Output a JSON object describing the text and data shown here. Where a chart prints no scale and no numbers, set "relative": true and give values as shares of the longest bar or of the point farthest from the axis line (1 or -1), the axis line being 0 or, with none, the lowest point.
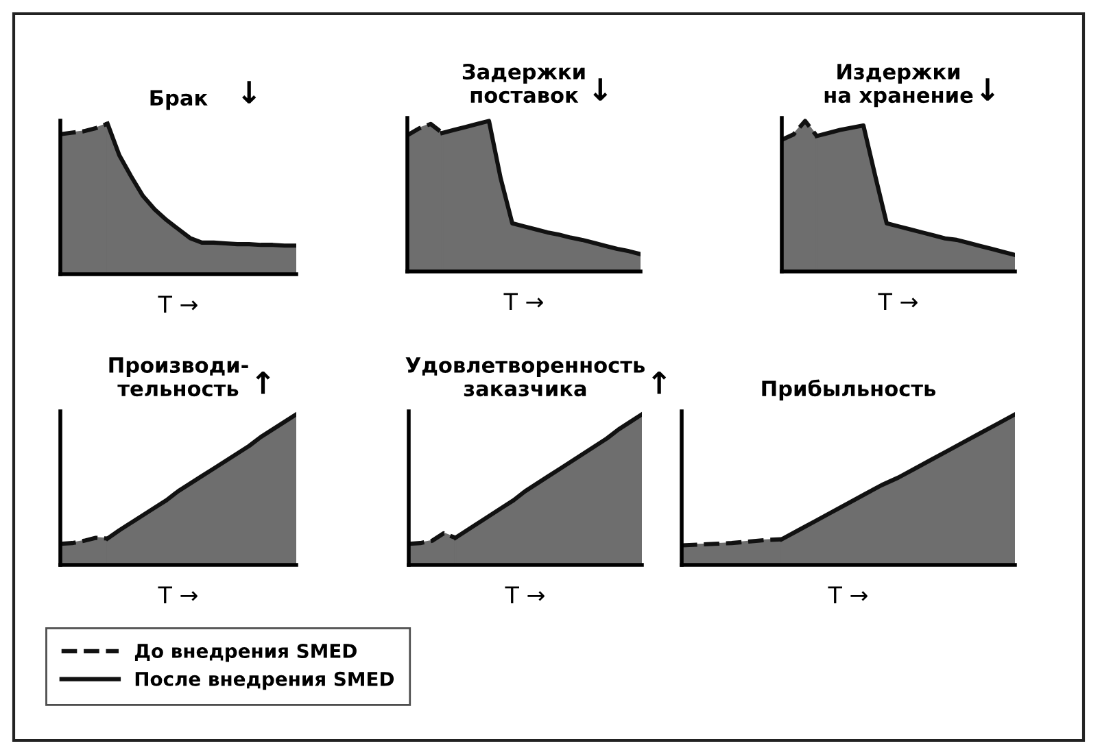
{
  "chart_data": [
    {
      "type": "area",
      "relative": true,
      "title": "Брак",
      "xlabel": "T →",
      "annotations": [
        "↓"
      ],
      "categories": [
        null,
        null,
        null,
        null,
        null,
        null,
        null,
        null,
        null,
        null,
        null,
        null,
        null,
        null,
        null,
        null,
        null,
        null,
        null,
        null,
        null
      ],
      "series": [
        {
          "color": "#111111",
          "line_style": "dashed",
          "values": [
            0.93,
            0.94,
            0.95,
            0.97,
            1.0,
            null,
            null,
            null,
            null,
            null,
            null,
            null,
            null,
            null,
            null,
            null,
            null,
            null,
            null,
            null,
            null
          ]
        },
        {
          "color": "#111111",
          "line_style": "solid",
          "values": [
            null,
            null,
            null,
            null,
            1.0,
            0.79,
            0.65,
            0.52,
            0.43,
            0.36,
            0.3,
            0.24,
            0.21,
            0.21,
            0.205,
            0.2,
            0.2,
            0.195,
            0.195,
            0.19,
            0.19
          ]
        }
      ]
    },
    {
      "type": "area",
      "relative": true,
      "title": "Задержки\nпоставок",
      "xlabel": "T →",
      "annotations": [
        "↓"
      ],
      "categories": [
        null,
        null,
        null,
        null,
        null,
        null,
        null,
        null,
        null,
        null,
        null,
        null,
        null,
        null,
        null,
        null,
        null,
        null,
        null,
        null,
        null
      ],
      "series": [
        {
          "color": "#111111",
          "line_style": "dashed",
          "values": [
            0.905,
            0.95,
            0.98,
            0.92,
            null,
            null,
            null,
            null,
            null,
            null,
            null,
            null,
            null,
            null,
            null,
            null,
            null,
            null,
            null,
            null,
            null
          ]
        },
        {
          "color": "#111111",
          "line_style": "solid",
          "values": [
            null,
            null,
            null,
            0.92,
            0.94,
            0.96,
            0.98,
            1.0,
            0.62,
            0.32,
            0.3,
            0.28,
            0.26,
            0.245,
            0.225,
            0.21,
            0.19,
            0.17,
            0.15,
            0.135,
            0.115
          ]
        }
      ]
    },
    {
      "type": "area",
      "relative": true,
      "title": "Издержки\nна хранение",
      "xlabel": "T →",
      "annotations": [
        "↓"
      ],
      "categories": [
        null,
        null,
        null,
        null,
        null,
        null,
        null,
        null,
        null,
        null,
        null,
        null,
        null,
        null,
        null,
        null,
        null,
        null,
        null,
        null,
        null
      ],
      "series": [
        {
          "color": "#111111",
          "line_style": "dashed",
          "values": [
            0.875,
            0.91,
            1.0,
            0.9,
            null,
            null,
            null,
            null,
            null,
            null,
            null,
            null,
            null,
            null,
            null,
            null,
            null,
            null,
            null,
            null,
            null
          ]
        },
        {
          "color": "#111111",
          "line_style": "solid",
          "values": [
            null,
            null,
            null,
            0.9,
            0.92,
            0.94,
            0.955,
            0.97,
            0.64,
            0.32,
            0.3,
            0.28,
            0.26,
            0.24,
            0.22,
            0.21,
            0.19,
            0.17,
            0.15,
            0.13,
            0.11
          ]
        }
      ]
    },
    {
      "type": "area",
      "relative": true,
      "title": "Производи-\nтельность",
      "xlabel": "T →",
      "annotations": [
        "↑"
      ],
      "legend": "bottom",
      "categories": [
        null,
        null,
        null,
        null,
        null,
        null,
        null,
        null,
        null,
        null,
        null,
        null,
        null,
        null,
        null,
        null,
        null,
        null,
        null,
        null,
        null
      ],
      "series": [
        {
          "name": "До внедрения SMED",
          "color": "#111111",
          "line_style": "dashed",
          "values": [
            0.14,
            0.145,
            0.16,
            0.18,
            0.175,
            null,
            null,
            null,
            null,
            null,
            null,
            null,
            null,
            null,
            null,
            null,
            null,
            null,
            null,
            null,
            null
          ]
        },
        {
          "name": "После внедрения SMED",
          "color": "#111111",
          "line_style": "solid",
          "values": [
            null,
            null,
            null,
            null,
            0.175,
            0.23,
            0.28,
            0.33,
            0.38,
            0.43,
            0.49,
            0.54,
            0.59,
            0.64,
            0.69,
            0.74,
            0.79,
            0.85,
            0.9,
            0.95,
            1.0
          ]
        }
      ]
    },
    {
      "type": "area",
      "relative": true,
      "title": "Удовлетворенность\nзаказчика",
      "xlabel": "T →",
      "annotations": [
        "↑"
      ],
      "categories": [
        null,
        null,
        null,
        null,
        null,
        null,
        null,
        null,
        null,
        null,
        null,
        null,
        null,
        null,
        null,
        null,
        null,
        null,
        null,
        null,
        null
      ],
      "series": [
        {
          "color": "#111111",
          "line_style": "dashed",
          "values": [
            0.14,
            0.145,
            0.16,
            0.21,
            0.18,
            null,
            null,
            null,
            null,
            null,
            null,
            null,
            null,
            null,
            null,
            null,
            null,
            null,
            null,
            null,
            null
          ]
        },
        {
          "color": "#111111",
          "line_style": "solid",
          "values": [
            null,
            null,
            null,
            null,
            0.18,
            0.23,
            0.28,
            0.33,
            0.38,
            0.43,
            0.49,
            0.54,
            0.59,
            0.64,
            0.69,
            0.74,
            0.79,
            0.84,
            0.9,
            0.95,
            1.0
          ]
        }
      ]
    },
    {
      "type": "area",
      "relative": true,
      "title": "Прибыльность",
      "xlabel": "T →",
      "categories": [
        null,
        null,
        null,
        null,
        null,
        null,
        null,
        null,
        null,
        null,
        null,
        null,
        null,
        null,
        null,
        null,
        null,
        null,
        null,
        null,
        null
      ],
      "series": [
        {
          "color": "#111111",
          "line_style": "dashed",
          "values": [
            0.13,
            0.135,
            0.14,
            0.145,
            0.155,
            0.165,
            0.17,
            null,
            null,
            null,
            null,
            null,
            null,
            null,
            null,
            null,
            null,
            null,
            null,
            null,
            null
          ]
        },
        {
          "color": "#111111",
          "line_style": "solid",
          "values": [
            null,
            null,
            null,
            null,
            null,
            null,
            0.17,
            0.23,
            0.29,
            0.35,
            0.41,
            0.47,
            0.53,
            0.58,
            0.64,
            0.7,
            0.76,
            0.82,
            0.88,
            0.94,
            1.0
          ]
        }
      ]
    }
  ]
}
